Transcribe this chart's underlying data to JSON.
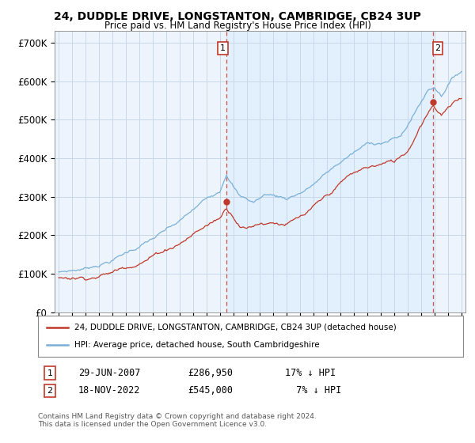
{
  "title": "24, DUDDLE DRIVE, LONGSTANTON, CAMBRIDGE, CB24 3UP",
  "subtitle": "Price paid vs. HM Land Registry's House Price Index (HPI)",
  "ylabel_ticks": [
    "£0",
    "£100K",
    "£200K",
    "£300K",
    "£400K",
    "£500K",
    "£600K",
    "£700K"
  ],
  "ytick_values": [
    0,
    100000,
    200000,
    300000,
    400000,
    500000,
    600000,
    700000
  ],
  "ylim": [
    0,
    730000
  ],
  "xlim_start": 1994.7,
  "xlim_end": 2025.3,
  "hpi_color": "#7ab0d8",
  "price_color": "#c0392b",
  "dashed_line_color": "#c0392b",
  "shade_color": "#ddeeff",
  "transaction1": {
    "date": "29-JUN-2007",
    "price": 286950,
    "label": "1",
    "year": 2007.49
  },
  "transaction2": {
    "date": "18-NOV-2022",
    "price": 545000,
    "label": "2",
    "year": 2022.88
  },
  "footer_text": "Contains HM Land Registry data © Crown copyright and database right 2024.\nThis data is licensed under the Open Government Licence v3.0.",
  "legend_property_label": "24, DUDDLE DRIVE, LONGSTANTON, CAMBRIDGE, CB24 3UP (detached house)",
  "legend_hpi_label": "HPI: Average price, detached house, South Cambridgeshire",
  "background_color": "#ffffff",
  "plot_bg_color": "#eef4fb",
  "grid_color": "#c8d8e8"
}
